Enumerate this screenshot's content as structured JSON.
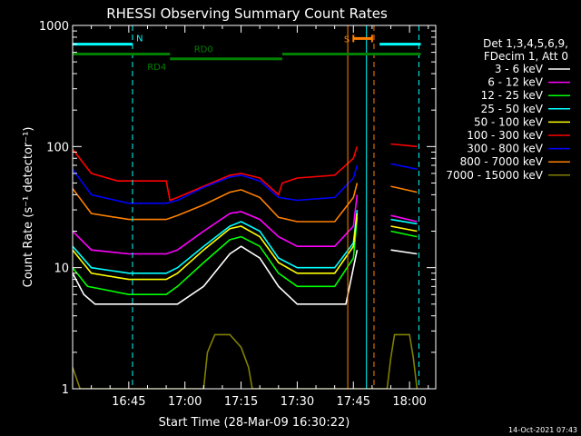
{
  "chart_data": {
    "type": "line",
    "title": "RHESSI Observing Summary Count Rates",
    "xlabel": "Start Time (28-Mar-09 16:30:22)",
    "ylabel": "Count Rate (s⁻¹ detector⁻¹)",
    "xlim_minutes": [
      0,
      97
    ],
    "ylim": [
      1,
      1000
    ],
    "yscale": "log",
    "x_ticks": [
      {
        "label": "16:45",
        "minute": 15
      },
      {
        "label": "17:00",
        "minute": 30
      },
      {
        "label": "17:15",
        "minute": 45
      },
      {
        "label": "17:30",
        "minute": 60
      },
      {
        "label": "17:45",
        "minute": 75
      },
      {
        "label": "18:00",
        "minute": 90
      }
    ],
    "y_ticks": [
      {
        "label": "1",
        "value": 1
      },
      {
        "label": "10",
        "value": 10
      },
      {
        "label": "100",
        "value": 100
      },
      {
        "label": "1000",
        "value": 1000
      }
    ],
    "legend": {
      "placement": "right",
      "header": [
        "Det 1,3,4,5,6,9,",
        "FDecim 1, Att 0"
      ]
    },
    "series": [
      {
        "name": "3 - 6 keV",
        "color": "#ffffff",
        "values": [
          [
            0,
            9
          ],
          [
            3,
            6
          ],
          [
            6,
            5
          ],
          [
            15,
            5
          ],
          [
            25,
            5
          ],
          [
            28,
            5
          ],
          [
            35,
            7
          ],
          [
            42,
            13
          ],
          [
            45,
            15
          ],
          [
            50,
            12
          ],
          [
            55,
            7
          ],
          [
            60,
            5
          ],
          [
            68,
            5
          ],
          [
            73,
            5
          ],
          [
            76,
            14
          ],
          [
            82,
            null
          ],
          [
            85,
            14
          ],
          [
            92,
            13
          ]
        ]
      },
      {
        "name": "6 - 12 keV",
        "color": "#ff00ff",
        "values": [
          [
            0,
            20
          ],
          [
            5,
            14
          ],
          [
            15,
            13
          ],
          [
            25,
            13
          ],
          [
            28,
            14
          ],
          [
            35,
            20
          ],
          [
            42,
            28
          ],
          [
            45,
            29
          ],
          [
            50,
            25
          ],
          [
            55,
            18
          ],
          [
            60,
            15
          ],
          [
            70,
            15
          ],
          [
            75,
            22
          ],
          [
            76,
            40
          ],
          [
            82,
            null
          ],
          [
            85,
            27
          ],
          [
            92,
            24
          ]
        ]
      },
      {
        "name": "12 - 25 keV",
        "color": "#00ff00",
        "values": [
          [
            0,
            10
          ],
          [
            4,
            7
          ],
          [
            15,
            6
          ],
          [
            25,
            6
          ],
          [
            28,
            7
          ],
          [
            35,
            11
          ],
          [
            42,
            17
          ],
          [
            45,
            18
          ],
          [
            50,
            15
          ],
          [
            55,
            9
          ],
          [
            60,
            7
          ],
          [
            70,
            7
          ],
          [
            75,
            12
          ],
          [
            76,
            26
          ],
          [
            82,
            null
          ],
          [
            85,
            20
          ],
          [
            92,
            18
          ]
        ]
      },
      {
        "name": "25 - 50 keV",
        "color": "#00ffff",
        "values": [
          [
            0,
            15
          ],
          [
            5,
            10
          ],
          [
            15,
            9
          ],
          [
            25,
            9
          ],
          [
            28,
            10
          ],
          [
            35,
            15
          ],
          [
            42,
            22
          ],
          [
            45,
            24
          ],
          [
            50,
            20
          ],
          [
            55,
            12
          ],
          [
            60,
            10
          ],
          [
            70,
            10
          ],
          [
            75,
            16
          ],
          [
            76,
            30
          ],
          [
            82,
            null
          ],
          [
            85,
            25
          ],
          [
            92,
            23
          ]
        ]
      },
      {
        "name": "50 - 100 keV",
        "color": "#ffff00",
        "values": [
          [
            0,
            14
          ],
          [
            5,
            9
          ],
          [
            15,
            8
          ],
          [
            25,
            8
          ],
          [
            28,
            9
          ],
          [
            35,
            14
          ],
          [
            42,
            21
          ],
          [
            45,
            22
          ],
          [
            50,
            18
          ],
          [
            55,
            11
          ],
          [
            60,
            9
          ],
          [
            70,
            9
          ],
          [
            75,
            15
          ],
          [
            76,
            28
          ],
          [
            82,
            null
          ],
          [
            85,
            22
          ],
          [
            92,
            20
          ]
        ]
      },
      {
        "name": "100 - 300 keV",
        "color": "#ff0000",
        "values": [
          [
            0,
            95
          ],
          [
            5,
            60
          ],
          [
            12,
            52
          ],
          [
            25,
            52
          ],
          [
            26,
            36
          ],
          [
            28,
            38
          ],
          [
            35,
            47
          ],
          [
            42,
            58
          ],
          [
            45,
            60
          ],
          [
            50,
            55
          ],
          [
            55,
            40
          ],
          [
            56,
            50
          ],
          [
            60,
            55
          ],
          [
            70,
            58
          ],
          [
            75,
            80
          ],
          [
            76,
            100
          ],
          [
            82,
            null
          ],
          [
            85,
            105
          ],
          [
            92,
            100
          ]
        ]
      },
      {
        "name": "300 - 800 keV",
        "color": "#0000ff",
        "values": [
          [
            0,
            65
          ],
          [
            5,
            40
          ],
          [
            15,
            34
          ],
          [
            25,
            34
          ],
          [
            28,
            36
          ],
          [
            35,
            46
          ],
          [
            42,
            56
          ],
          [
            45,
            58
          ],
          [
            50,
            52
          ],
          [
            55,
            38
          ],
          [
            60,
            36
          ],
          [
            70,
            38
          ],
          [
            75,
            55
          ],
          [
            76,
            70
          ],
          [
            82,
            null
          ],
          [
            85,
            72
          ],
          [
            92,
            65
          ]
        ]
      },
      {
        "name": "800 - 7000 keV",
        "color": "#ff8000",
        "values": [
          [
            0,
            45
          ],
          [
            5,
            28
          ],
          [
            15,
            25
          ],
          [
            25,
            25
          ],
          [
            28,
            27
          ],
          [
            35,
            33
          ],
          [
            42,
            42
          ],
          [
            45,
            44
          ],
          [
            50,
            38
          ],
          [
            55,
            26
          ],
          [
            60,
            24
          ],
          [
            70,
            24
          ],
          [
            75,
            38
          ],
          [
            76,
            50
          ],
          [
            82,
            null
          ],
          [
            85,
            47
          ],
          [
            92,
            42
          ]
        ]
      },
      {
        "name": "7000 - 15000 keV",
        "color": "#808000",
        "values": [
          [
            0,
            1.5
          ],
          [
            2,
            1
          ],
          [
            35,
            1
          ],
          [
            36,
            2
          ],
          [
            38,
            2.8
          ],
          [
            42,
            2.8
          ],
          [
            45,
            2.2
          ],
          [
            47,
            1.5
          ],
          [
            48,
            1
          ],
          [
            84,
            1
          ],
          [
            85,
            1.8
          ],
          [
            86,
            2.8
          ],
          [
            90,
            2.8
          ],
          [
            91,
            1.8
          ],
          [
            92,
            1
          ]
        ]
      }
    ],
    "annotations": [
      {
        "label": "N",
        "color": "#00ffff",
        "bars_minutes": [
          [
            0,
            16
          ],
          [
            82,
            93
          ]
        ],
        "level": 700
      },
      {
        "label": "RD0",
        "color": "#008000",
        "bars_minutes": [
          [
            0,
            26
          ],
          [
            56,
            93
          ]
        ],
        "level": 580
      },
      {
        "label": "RD4",
        "color": "#008000",
        "bars_minutes": [
          [
            26,
            56
          ]
        ],
        "level": 530
      },
      {
        "label": "S",
        "color": "#ff8000",
        "bars_minutes": [
          [
            75,
            80
          ]
        ],
        "level": 780
      }
    ],
    "vertical_lines": [
      {
        "minute": 0,
        "color": "#00ffff",
        "style": "solid"
      },
      {
        "minute": 16,
        "color": "#00ffff",
        "style": "dashed"
      },
      {
        "minute": 73.5,
        "color": "#ff8000",
        "style": "solid"
      },
      {
        "minute": 78.5,
        "color": "#00ffff",
        "style": "solid"
      },
      {
        "minute": 80.5,
        "color": "#ff8000",
        "style": "dashed"
      },
      {
        "minute": 92.5,
        "color": "#00ffff",
        "style": "dashed"
      }
    ]
  },
  "timestamp": "14-Oct-2021 07:43"
}
